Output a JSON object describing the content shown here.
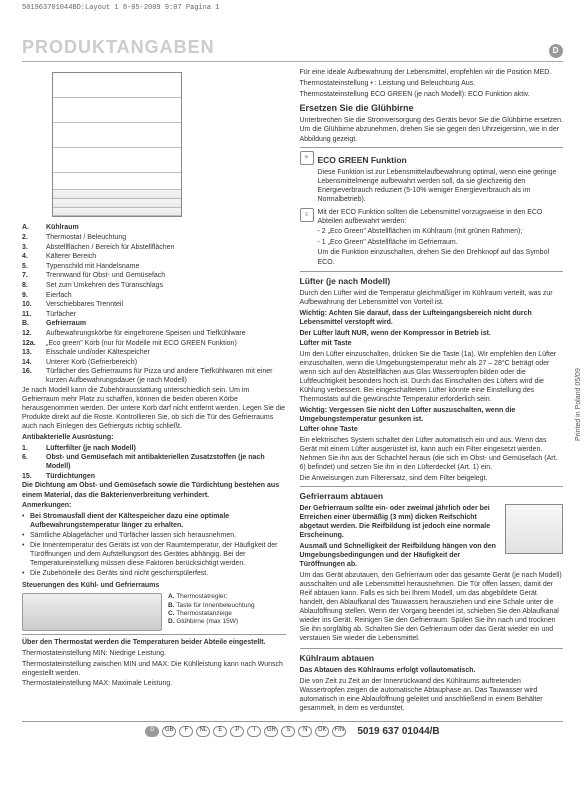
{
  "meta_line": "501963701044BD:Layout 1   8-05-2009   9:07   Pagina 1",
  "title": "PRODUKTANGABEN",
  "lang_badge": "D",
  "side_print": "Printed in Poland    05/09",
  "part_no": "5019 637 01044/B",
  "footer_langs": [
    "D",
    "GB",
    "F",
    "NL",
    "E",
    "P",
    "I",
    "GR",
    "S",
    "N",
    "DK",
    "FIN"
  ],
  "left": {
    "legend_A": {
      "num": "A.",
      "text": "Kühlraum"
    },
    "legend": [
      {
        "num": "2.",
        "text": "Thermostat / Beleuchtung"
      },
      {
        "num": "3.",
        "text": "Abstellflächen / Bereich für Abstellflächen"
      },
      {
        "num": "4.",
        "text": "Kälterer Bereich"
      },
      {
        "num": "5.",
        "text": "Typenschild mit Handelsname"
      },
      {
        "num": "7.",
        "text": "Trennwand für Obst- und Gemüsefach"
      },
      {
        "num": "8.",
        "text": "Set zum Umkehren des Türanschlags"
      },
      {
        "num": "9.",
        "text": "Eierfach"
      },
      {
        "num": "10.",
        "text": "Verschiebbares Trennteil"
      },
      {
        "num": "11.",
        "text": "Türfächer"
      }
    ],
    "legend_B": {
      "num": "B.",
      "text": "Gefrierraum"
    },
    "legend2": [
      {
        "num": "12.",
        "text": "Aufbewahrungskörbe für eingefrorene Speisen und Tiefkühlware"
      },
      {
        "num": "12a.",
        "text": "„Eco green\" Korb (nur für Modelle mit ECO GREEN Funktion)"
      },
      {
        "num": "13.",
        "text": "Eisschale und/oder Kältespeicher"
      },
      {
        "num": "14.",
        "text": "Unterer Korb (Gefrierbereich)"
      },
      {
        "num": "16.",
        "text": "Türfächer des Gefrierraums für Pizza und andere Tiefkühlwaren mit einer kurzen Aufbewahrungsdauer (je nach Modell)"
      }
    ],
    "para_model": "Je nach Modell kann die Zubehörausstattung unterschiedlich sein. Um im Gefrierraum mehr Platz zu schaffen, können die beiden oberen Körbe herausgenommen werden. Der untere Korb darf nicht entfernt werden. Legen Sie die Produkte direkt auf die Roste. Kontrollieren Sie, ob sich die Tür des Gefrierraums auch nach Einlegen des Gefrierguts richtig schließt.",
    "antibak_head": "Antibakterielle Ausrüstung:",
    "antibak_items": [
      {
        "num": "1.",
        "text": "Lüfterfilter (je nach Modell)"
      },
      {
        "num": "6.",
        "text": "Obst- und Gemüsefach mit antibakteriellen Zusatzstoffen (je nach Modell)"
      },
      {
        "num": "15.",
        "text": "Türdichtungen"
      }
    ],
    "dichtung": "Die Dichtung am Obst- und Gemüsefach sowie die Türdichtung bestehen aus einem Material, das die Bakterienverbreitung verhindert.",
    "anm_head": "Anmerkungen:",
    "anm": [
      "Bei Stromausfall dient der Kältespeicher dazu eine optimale Aufbewahrungstemperatur länger zu erhalten.",
      "Sämtliche Ablagefächer und Türfächer lassen sich herausnehmen.",
      "Die Innentemperatur des Geräts ist von der Raumtemperatur, der Häufigkeit der Türöffnungen und dem Aufstellungsort des Gerätes abhängig. Bei der Temperatureinstellung müssen diese Faktoren berücksichtigt werden.",
      "Die Zubehörteile des Geräts sind nicht geschirrspülerfest."
    ],
    "steuer_head": "Steuerungen des Kühl- und Gefrierraums",
    "ctrl_labels": {
      "A": "Thermostatregler;",
      "B": "Taste für Innenbeleuchtung",
      "C": "Thermostatanzeige",
      "D": "Glühbirne (max 15W)"
    },
    "thermostat_head": "Über den Thermostat werden die Temperaturen beider Abteile eingestellt.",
    "therm1": "Thermostateinstellung MIN: Niedrige Leistung.",
    "therm2": "Thermostateinstellung zwischen MIN und MAX: Die Kühlleistung kann nach Wunsch eingestellt werden.",
    "therm3": "Thermostateinstellung MAX: Maximale Leistung."
  },
  "right": {
    "intro1": "Für eine ideale Aufbewahrung der Lebensmittel, empfehlen wir die Position MED.",
    "intro2": "Thermostateinstellung • : Leistung und Beleuchtung Aus.",
    "intro3": "Thermostateinstellung ECO GREEN (je nach Modell): ECO Funktion aktiv.",
    "ersetzen_head": "Ersetzen Sie die Glühbirne",
    "ersetzen": "Unterbrechen Sie die Stromversorgung des Geräts bevor Sie die Glühbirne ersetzen. Um die Glühbirne abzunehmen, drehen Sie sie gegen den Uhrzeigersinn, wie in der Abbildung gezeigt.",
    "eco_head": "ECO GREEN Funktion",
    "eco_p1": "Diese Funktion ist zur Lebensmittelaufbewahrung optimal, wenn eine geringe Lebensmittelmenge aufbewahrt werden soll, da sie gleichzeitig den Energieverbrauch reduziert (5-10% weniger Energieverbrauch als im Normalbetrieb).",
    "eco_p2": "Mit der ECO Funktion sollten die Lebensmittel vorzugsweise in den ECO Abteilen aufbewahrt werden:",
    "eco_b1": "- 2 „Eco Green\" Abstellflächen im Kühlraum (mit grünen Rahmen);",
    "eco_b2": "- 1 „Eco Green\" Abstellfläche im Gefrierraum.",
    "eco_p3": "Um die Funktion einzuschalten, drehen Sie den Drehknopf auf das Symbol ECO.",
    "luefter_head": "Lüfter (je nach Modell)",
    "luefter_p1": "Durch den Lüfter wird die Temperatur gleichmäßiger im Kühlraum verteilt, was zur Aufbewahrung der Lebensmittel von Vorteil ist.",
    "luefter_b1": "Wichtig: Achten Sie darauf, dass der Lufteingangsbereich nicht durch Lebensmittel verstopft wird.",
    "luefter_b2": "Der Lüfter läuft NUR, wenn der Kompressor in Betrieb ist.",
    "luefter_taste_h": "Lüfter mit Taste",
    "luefter_taste": "Um den Lüfter einzuschalten, drücken Sie die Taste (1a). Wir empfehlen den Lüfter einzuschalten, wenn die Umgebungstemperatur mehr als 27 – 28°C beträgt oder wenn sich auf den Abstellflächen aus Glas Wassertropfen bilden oder die Luftfeuchtigkeit besonders hoch ist. Durch das Einschalten des Lüfters wird die Kühlung verbessert. Bei eingeschaltetem Lüfter könnte eine Einstellung des Thermostats auf die gewünschte Temperatur erforderlich sein.",
    "luefter_b3": "Wichtig: Vergessen Sie nicht den Lüfter auszuschalten, wenn die Umgebungstemperatur gesunken ist.",
    "luefter_ohne_h": "Lüfter ohne Taste",
    "luefter_ohne": "Ein elektrisches System schaltet den Lüfter automatisch ein und aus. Wenn das Gerät mit einem Lüfter ausgerüstet ist, kann auch ein Filter eingesetzt werden. Nehmen Sie ihn aus der Schachtel heraus (die sich im Obst- und Gemüsefach (Art. 6) befindet) und setzen Sie ihn in den Lüfterdeckel (Art. 1) ein.",
    "luefter_ohne2": "Die Anweisungen zum Filterersatz, sind dem Filter beigelegt.",
    "abtau_head": "Gefrierraum abtauen",
    "abtau_b1": "Der Gefrierraum sollte ein- oder zweimal jährlich oder bei Erreichen einer übermäßig (3 mm) dicken Reifschicht abgetaut werden. Die Reifbildung ist jedoch eine normale Erscheinung.",
    "abtau_b2": "Ausmaß und Schnelligkeit der Reifbildung hängen von den Umgebungsbedingungen und der Häufigkeit der Türöffnungen ab.",
    "abtau_p": "Um das Gerät abzutauen, den Gefrierraum oder das gesamte Gerät (je nach Modell) ausschalten und alle Lebensmittel herausnehmen. Die Tür offen lassen, damit der Reif abtauen kann. Falls es sich bei Ihrem Modell, um das abgebildete Gerät handelt, den Ablaufkanal des Tauwassers herausziehen und eine Schale unter die Ablauföffnung stellen. Wenn der Vorgang beendet ist, schieben Sie den Ablaufkanal wieder ins Gerät. Reinigen Sie den Gefrierraum. Spülen Sie ihn nach und trocknen Sie ihn sorgfältig ab. Schalten Sie den Gefrierraum oder das Gerät wieder ein und verstauen Sie wieder die Lebensmittel.",
    "kuehl_head": "Kühlraum abtauen",
    "kuehl_b": "Das Abtauen des Kühlraums erfolgt vollautomatisch.",
    "kuehl_p": "Die von Zeit zu Zeit an der Innenrückwand des Kühlraums auftretenden Wassertropfen zeigen die automatische Abtauphase an. Das Tauwasser wird automatisch in eine Ablauföffnung geleitet und anschließend in einem Behälter gesammelt, in dem es verdunstet."
  }
}
